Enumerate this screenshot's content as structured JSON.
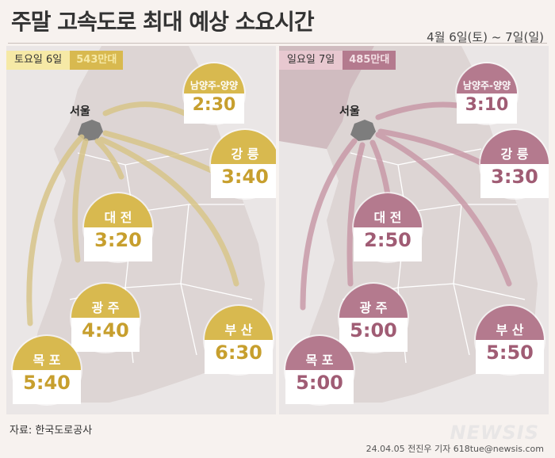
{
  "title": "주말 고속도로 최대 예상 소요시간",
  "date_range": "4월 6일(토) ~ 7일(일)",
  "saturday": {
    "day_label": "토요일 6일",
    "volume": "543만대",
    "accent": "#d8b94f",
    "destinations": [
      {
        "name": "남양주-양양",
        "time": "2:30"
      },
      {
        "name": "강 릉",
        "time": "3:40"
      },
      {
        "name": "대 전",
        "time": "3:20"
      },
      {
        "name": "광 주",
        "time": "4:40"
      },
      {
        "name": "부 산",
        "time": "6:30"
      },
      {
        "name": "목 포",
        "time": "5:40"
      }
    ]
  },
  "sunday": {
    "day_label": "일요일 7일",
    "volume": "485만대",
    "accent": "#b47a8e",
    "destinations": [
      {
        "name": "남양주-양양",
        "time": "3:10"
      },
      {
        "name": "강 릉",
        "time": "3:30"
      },
      {
        "name": "대 전",
        "time": "2:50"
      },
      {
        "name": "광 주",
        "time": "5:00"
      },
      {
        "name": "부 산",
        "time": "5:50"
      },
      {
        "name": "목 포",
        "time": "5:00"
      }
    ]
  },
  "seoul_label": "서울",
  "source": "자료: 한국도로공사",
  "credit": "24.04.05 전진우 기자 618tue@newsis.com",
  "logo_text": "NEWSIS"
}
